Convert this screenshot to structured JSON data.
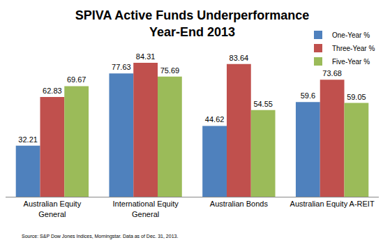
{
  "chart_data": {
    "type": "bar",
    "title": "SPIVA Active Funds Underperformance\nYear-End 2013",
    "categories": [
      "Australian Equity\nGeneral",
      "International Equity\nGeneral",
      "Australian Bonds",
      "Australian Equity A-REIT"
    ],
    "series": [
      {
        "name": "One-Year %",
        "color": "#4f81bd",
        "values": [
          32.21,
          77.63,
          44.62,
          59.6
        ]
      },
      {
        "name": "Three-Year %",
        "color": "#c0504d",
        "values": [
          62.83,
          84.31,
          83.64,
          73.68
        ]
      },
      {
        "name": "Five-Year %",
        "color": "#9bbb59",
        "values": [
          69.67,
          75.69,
          54.55,
          59.05
        ]
      }
    ],
    "annotations": [
      "Source: S&P Dow Jones Indices, Morningstar. Data as of Dec. 31, 2013."
    ],
    "data_labels": true,
    "tick_labels": "x",
    "grid": false,
    "legend": "top right"
  }
}
